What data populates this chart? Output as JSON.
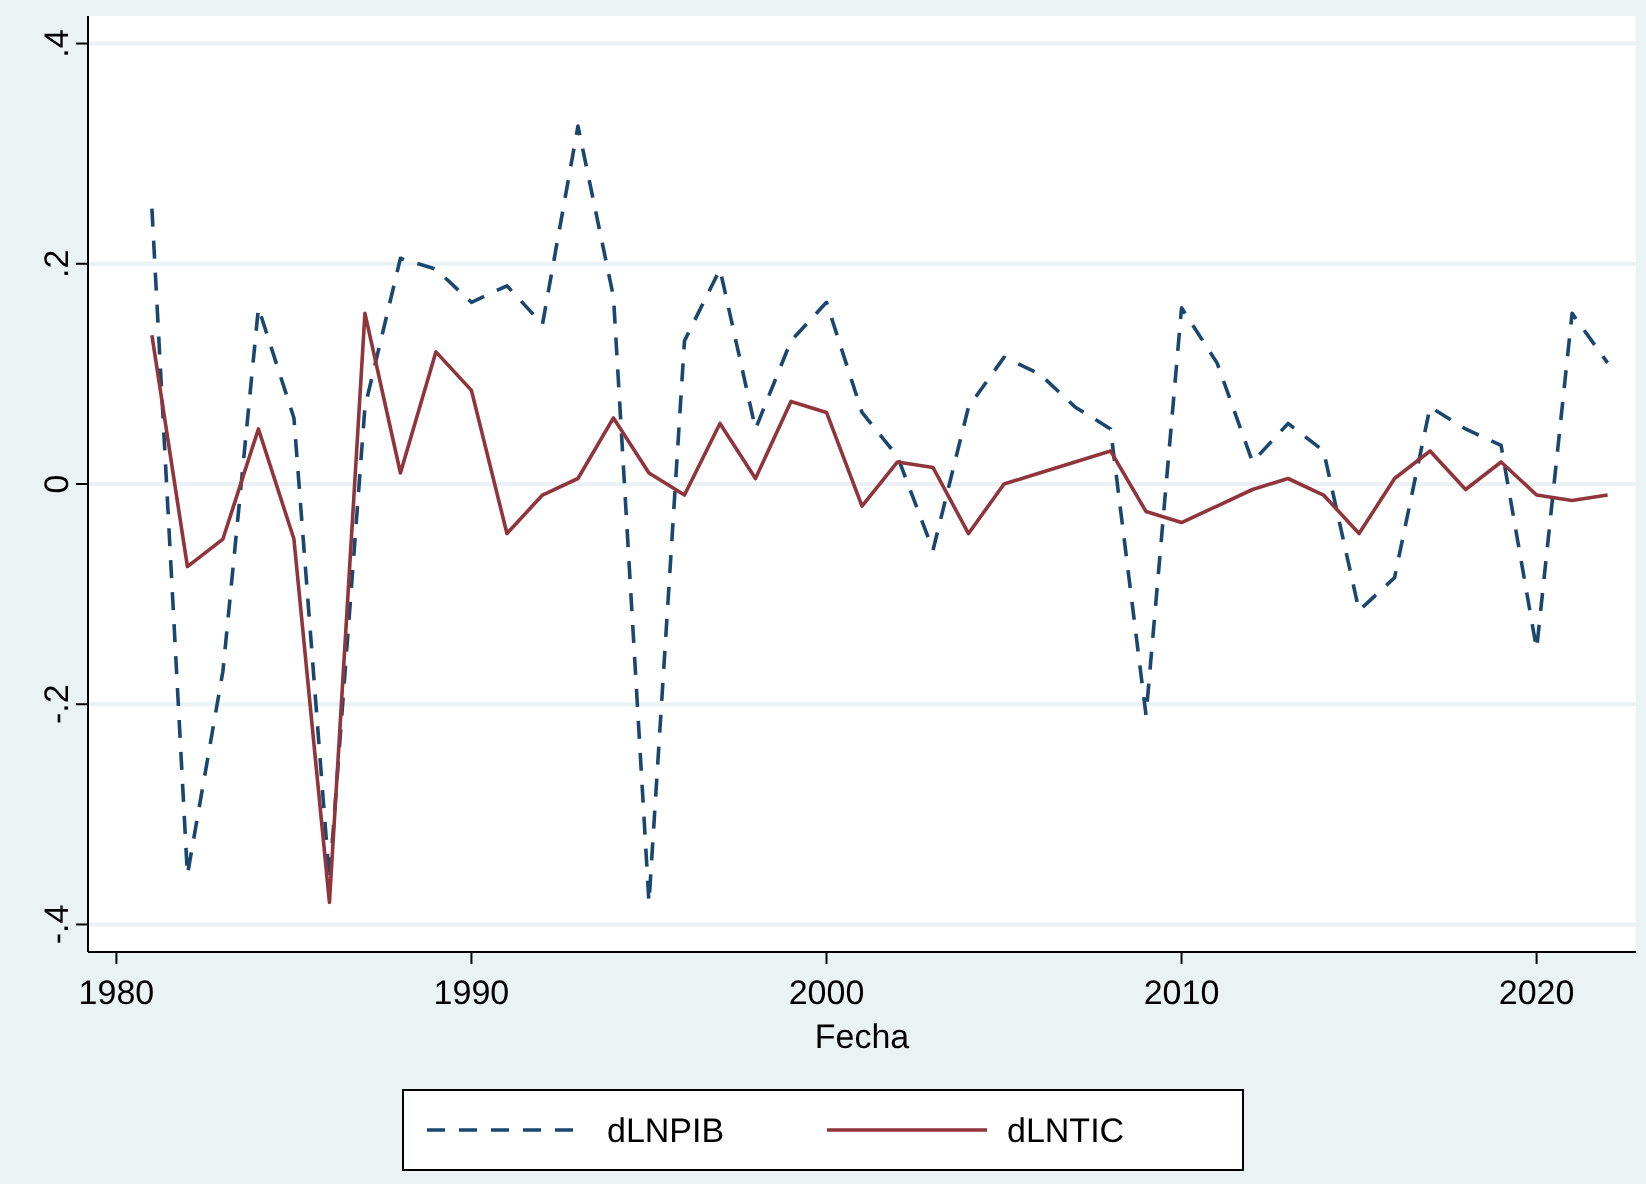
{
  "chart_data": {
    "type": "line",
    "xlabel": "Fecha",
    "x": [
      1981,
      1982,
      1983,
      1984,
      1985,
      1986,
      1987,
      1988,
      1989,
      1990,
      1991,
      1992,
      1993,
      1994,
      1995,
      1996,
      1997,
      1998,
      1999,
      2000,
      2001,
      2002,
      2003,
      2004,
      2005,
      2006,
      2007,
      2008,
      2009,
      2010,
      2011,
      2012,
      2013,
      2014,
      2015,
      2016,
      2017,
      2018,
      2019,
      2020,
      2021,
      2022
    ],
    "series": [
      {
        "name": "dLNPIB",
        "color": "#1a476f",
        "line_style": "dashed",
        "values": [
          0.25,
          -0.355,
          -0.17,
          0.16,
          0.06,
          -0.36,
          0.07,
          0.205,
          0.195,
          0.165,
          0.18,
          0.145,
          0.325,
          0.17,
          -0.38,
          0.13,
          0.195,
          0.05,
          0.13,
          0.165,
          0.065,
          0.025,
          -0.06,
          0.07,
          0.115,
          0.1,
          0.07,
          0.05,
          -0.21,
          0.16,
          0.11,
          0.02,
          0.055,
          0.03,
          -0.115,
          -0.085,
          0.07,
          0.05,
          0.035,
          -0.15,
          0.155,
          0.11
        ]
      },
      {
        "name": "dLNTIC",
        "color": "#90353b",
        "line_style": "solid",
        "values": [
          0.135,
          -0.075,
          -0.05,
          0.05,
          -0.05,
          -0.38,
          0.155,
          0.01,
          0.12,
          0.085,
          -0.045,
          -0.01,
          0.005,
          0.06,
          0.01,
          -0.01,
          0.055,
          0.005,
          0.075,
          0.065,
          -0.02,
          0.02,
          0.015,
          -0.045,
          0,
          0.01,
          0.02,
          0.03,
          -0.025,
          -0.035,
          -0.02,
          -0.005,
          0.005,
          -0.01,
          -0.045,
          0.005,
          0.03,
          -0.005,
          0.02,
          -0.01,
          -0.015,
          -0.01
        ]
      }
    ],
    "xlim": [
      1979.2,
      2022.8
    ],
    "xticks": [
      1980,
      1990,
      2000,
      2010,
      2020
    ],
    "ylim": [
      -0.425,
      0.425
    ],
    "yticks": [
      {
        "value": -0.4,
        "label": "-.4"
      },
      {
        "value": -0.2,
        "label": "-.2"
      },
      {
        "value": 0,
        "label": "0"
      },
      {
        "value": 0.2,
        "label": ".2"
      },
      {
        "value": 0.4,
        "label": ".4"
      }
    ],
    "grid": "y",
    "legend": "bottom",
    "marker": "none"
  }
}
